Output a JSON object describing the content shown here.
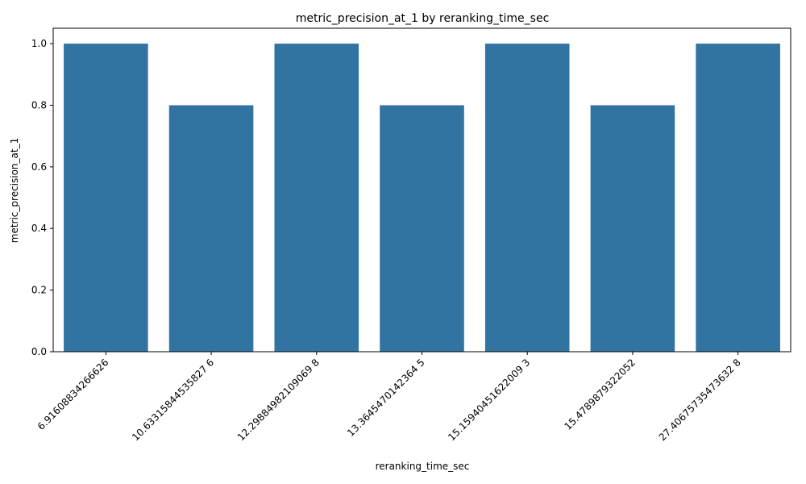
{
  "chart_data": {
    "type": "bar",
    "title": "metric_precision_at_1 by reranking_time_sec",
    "xlabel": "reranking_time_sec",
    "ylabel": "metric_precision_at_1",
    "categories": [
      "6.91608834266626",
      "10.63315844535827 6",
      "12.29884982109069 8",
      "13.3645470142364 5",
      "15.15940451622009 3",
      "15.4789879322052",
      "27.40675735473632 8"
    ],
    "values": [
      1.0,
      0.8,
      1.0,
      0.8,
      1.0,
      0.8,
      1.0
    ],
    "ylim": [
      0,
      1.05
    ],
    "yticks": [
      "0.0",
      "0.2",
      "0.4",
      "0.6",
      "0.8",
      "1.0"
    ],
    "grid": false,
    "legend": "none",
    "bar_color": "#3274a1"
  }
}
